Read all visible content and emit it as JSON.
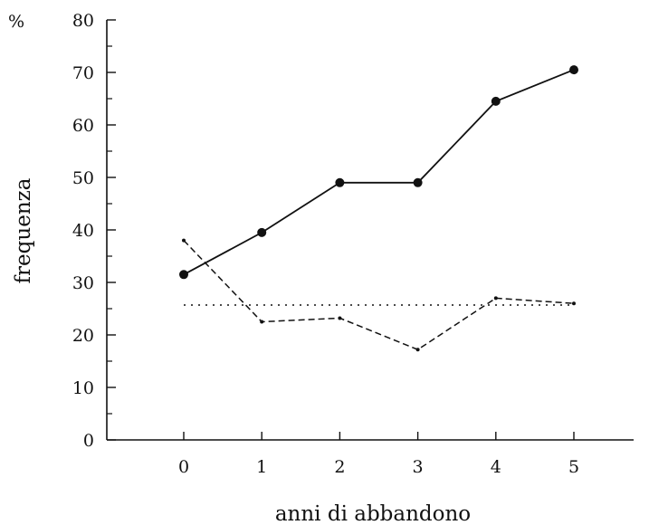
{
  "chart_data": {
    "type": "line",
    "title": "",
    "xlabel": "anni di abbandono",
    "ylabel": "frequenza",
    "yunit": "%",
    "x": [
      0,
      1,
      2,
      3,
      4,
      5
    ],
    "xlim": [
      -1,
      6
    ],
    "ylim": [
      0,
      80
    ],
    "yticks": [
      0,
      10,
      20,
      30,
      40,
      50,
      60,
      70,
      80
    ],
    "grid": false,
    "series": [
      {
        "style": "solid",
        "marker": "filled-circle",
        "color": "#111111",
        "values": [
          31.5,
          39.5,
          49,
          49,
          64.5,
          70.5
        ]
      },
      {
        "style": "dashed",
        "marker": "small-dot",
        "color": "#111111",
        "values": [
          38,
          22.5,
          23.2,
          17.2,
          27,
          26
        ]
      },
      {
        "style": "dotted",
        "marker": "none",
        "color": "#111111",
        "values": [
          25.7,
          25.7,
          25.7,
          25.7,
          25.7,
          25.7
        ]
      }
    ]
  }
}
